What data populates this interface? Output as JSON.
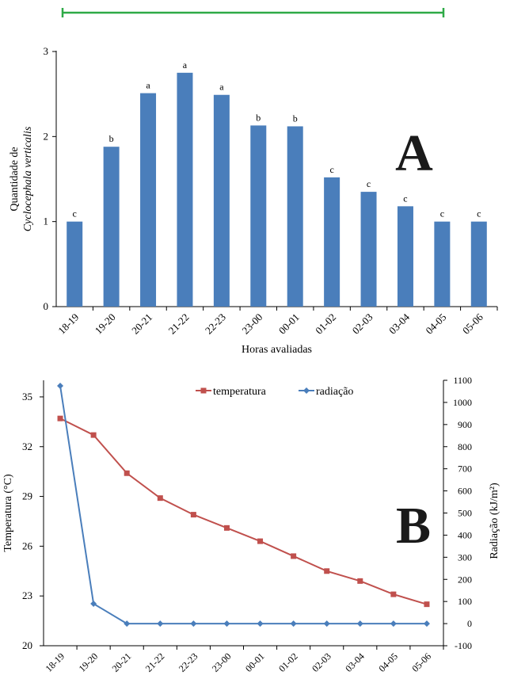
{
  "chart_data": [
    {
      "type": "bar",
      "panel_label": "A",
      "categories": [
        "18-19",
        "19-20",
        "20-21",
        "21-22",
        "22-23",
        "23-00",
        "00-01",
        "01-02",
        "02-03",
        "03-04",
        "04-05",
        "05-06"
      ],
      "values": [
        1.0,
        1.88,
        2.51,
        2.75,
        2.49,
        2.13,
        2.12,
        1.52,
        1.35,
        1.18,
        1.0,
        1.0
      ],
      "data_labels": [
        "c",
        "b",
        "a",
        "a",
        "a",
        "b",
        "b",
        "c",
        "c",
        "c",
        "c",
        "c"
      ],
      "xlabel": "Horas avaliadas",
      "ylabel_line1": "Quantidade de",
      "ylabel_line2": "Cyclocephala verticalis",
      "ylim": [
        0,
        3
      ],
      "yticks": [
        "0",
        "1",
        "2",
        "3"
      ],
      "color": "#4a7ebb",
      "bracket_color": "#2eaa47",
      "grid": false
    },
    {
      "type": "line",
      "panel_label": "B",
      "categories": [
        "18-19",
        "19-20",
        "20-21",
        "21-22",
        "22-23",
        "23-00",
        "00-01",
        "01-02",
        "02-03",
        "03-04",
        "04-05",
        "05-06"
      ],
      "series": [
        {
          "name": "temperatura",
          "axis": "left",
          "color": "#c0504d",
          "marker": "square",
          "values": [
            33.7,
            32.7,
            30.4,
            28.9,
            27.9,
            27.1,
            26.3,
            25.4,
            24.5,
            23.9,
            23.1,
            22.5
          ]
        },
        {
          "name": "radiação",
          "axis": "right",
          "color": "#4a7ebb",
          "marker": "diamond",
          "values": [
            1075,
            90,
            0,
            0,
            0,
            0,
            0,
            0,
            0,
            0,
            0,
            0
          ]
        }
      ],
      "ylabel_left": "Temperatura (°C)",
      "ylabel_right": "Radiação (kJ/m²)",
      "ylim_left": [
        20,
        36
      ],
      "yticks_left": [
        "20",
        "23",
        "26",
        "29",
        "32",
        "35"
      ],
      "ylim_right": [
        -100,
        1100
      ],
      "yticks_right": [
        "-100",
        "0",
        "100",
        "200",
        "300",
        "400",
        "500",
        "600",
        "700",
        "800",
        "900",
        "1000",
        "1100"
      ],
      "legend_position": "top",
      "grid": false
    }
  ]
}
